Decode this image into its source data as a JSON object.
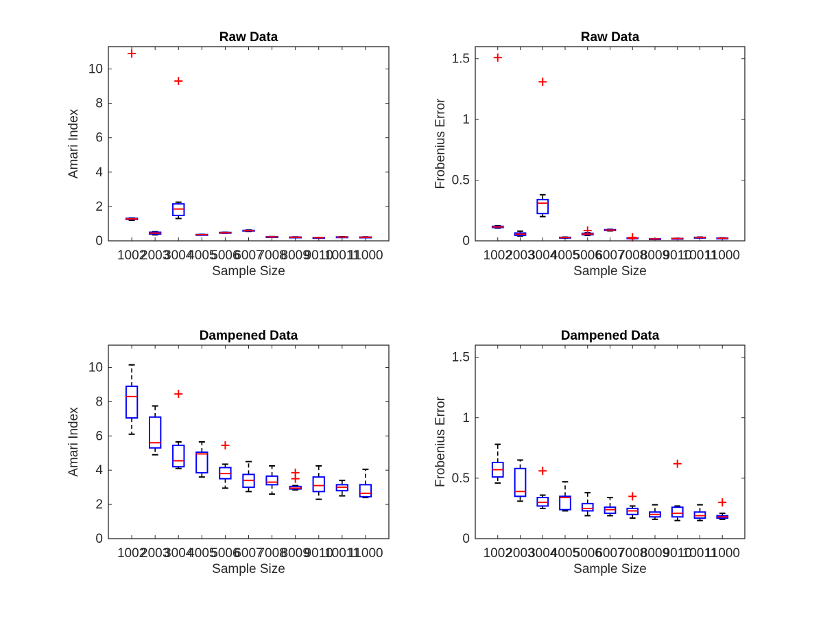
{
  "figure": {
    "background": "#ffffff",
    "box_color": "#0000ff",
    "median_color": "#ff0000",
    "whisker_color": "#000000",
    "outlier_color": "#ff0000",
    "outlier_marker": "+"
  },
  "chart_data": [
    {
      "type": "box",
      "title": "Raw Data",
      "xlabel": "Sample Size",
      "ylabel": "Amari Index",
      "ylim": [
        0,
        11.3
      ],
      "yticks": [
        0,
        2,
        4,
        6,
        8,
        10
      ],
      "yticklabels": [
        "0",
        "2",
        "4",
        "6",
        "8",
        "10"
      ],
      "categories": [
        "1002",
        "2003",
        "3004",
        "4005",
        "5006",
        "6007",
        "7008",
        "8009",
        "9010",
        "10011",
        "11000"
      ],
      "boxes": [
        {
          "wlo": 1.2,
          "q1": 1.25,
          "median": 1.28,
          "q3": 1.31,
          "whi": 1.33,
          "outliers": [
            10.9
          ]
        },
        {
          "wlo": 0.35,
          "q1": 0.4,
          "median": 0.45,
          "q3": 0.5,
          "whi": 0.53,
          "outliers": []
        },
        {
          "wlo": 1.3,
          "q1": 1.48,
          "median": 1.85,
          "q3": 2.15,
          "whi": 2.25,
          "outliers": [
            9.3
          ]
        },
        {
          "wlo": 0.34,
          "q1": 0.35,
          "median": 0.36,
          "q3": 0.37,
          "whi": 0.38,
          "outliers": []
        },
        {
          "wlo": 0.45,
          "q1": 0.46,
          "median": 0.47,
          "q3": 0.49,
          "whi": 0.5,
          "outliers": []
        },
        {
          "wlo": 0.55,
          "q1": 0.57,
          "median": 0.59,
          "q3": 0.61,
          "whi": 0.63,
          "outliers": []
        },
        {
          "wlo": 0.21,
          "q1": 0.22,
          "median": 0.23,
          "q3": 0.24,
          "whi": 0.25,
          "outliers": []
        },
        {
          "wlo": 0.19,
          "q1": 0.2,
          "median": 0.21,
          "q3": 0.22,
          "whi": 0.23,
          "outliers": []
        },
        {
          "wlo": 0.16,
          "q1": 0.17,
          "median": 0.18,
          "q3": 0.19,
          "whi": 0.2,
          "outliers": []
        },
        {
          "wlo": 0.2,
          "q1": 0.21,
          "median": 0.22,
          "q3": 0.23,
          "whi": 0.24,
          "outliers": []
        },
        {
          "wlo": 0.19,
          "q1": 0.2,
          "median": 0.21,
          "q3": 0.22,
          "whi": 0.23,
          "outliers": []
        }
      ]
    },
    {
      "type": "box",
      "title": "Raw Data",
      "xlabel": "Sample Size",
      "ylabel": "Frobenius Error",
      "ylim": [
        0,
        1.6
      ],
      "yticks": [
        0,
        0.5,
        1,
        1.5
      ],
      "yticklabels": [
        "0",
        "0.5",
        "1",
        "1.5"
      ],
      "categories": [
        "1002",
        "2003",
        "3004",
        "4005",
        "5006",
        "6007",
        "7008",
        "8009",
        "9010",
        "10011",
        "11000"
      ],
      "boxes": [
        {
          "wlo": 0.105,
          "q1": 0.11,
          "median": 0.115,
          "q3": 0.12,
          "whi": 0.125,
          "outliers": [
            1.51
          ]
        },
        {
          "wlo": 0.04,
          "q1": 0.045,
          "median": 0.055,
          "q3": 0.065,
          "whi": 0.08,
          "outliers": []
        },
        {
          "wlo": 0.2,
          "q1": 0.225,
          "median": 0.31,
          "q3": 0.34,
          "whi": 0.38,
          "outliers": [
            1.31
          ]
        },
        {
          "wlo": 0.022,
          "q1": 0.025,
          "median": 0.027,
          "q3": 0.029,
          "whi": 0.031,
          "outliers": []
        },
        {
          "wlo": 0.045,
          "q1": 0.05,
          "median": 0.056,
          "q3": 0.062,
          "whi": 0.067,
          "outliers": [
            0.085
          ]
        },
        {
          "wlo": 0.082,
          "q1": 0.085,
          "median": 0.088,
          "q3": 0.092,
          "whi": 0.095,
          "outliers": []
        },
        {
          "wlo": 0.018,
          "q1": 0.02,
          "median": 0.022,
          "q3": 0.024,
          "whi": 0.026,
          "outliers": [
            0.028
          ]
        },
        {
          "wlo": 0.014,
          "q1": 0.015,
          "median": 0.016,
          "q3": 0.017,
          "whi": 0.018,
          "outliers": []
        },
        {
          "wlo": 0.017,
          "q1": 0.018,
          "median": 0.019,
          "q3": 0.02,
          "whi": 0.021,
          "outliers": []
        },
        {
          "wlo": 0.024,
          "q1": 0.025,
          "median": 0.027,
          "q3": 0.029,
          "whi": 0.031,
          "outliers": []
        },
        {
          "wlo": 0.018,
          "q1": 0.019,
          "median": 0.021,
          "q3": 0.023,
          "whi": 0.025,
          "outliers": []
        }
      ]
    },
    {
      "type": "box",
      "title": "Dampened Data",
      "xlabel": "Sample Size",
      "ylabel": "Amari Index",
      "ylim": [
        0,
        11.3
      ],
      "yticks": [
        0,
        2,
        4,
        6,
        8,
        10
      ],
      "yticklabels": [
        "0",
        "2",
        "4",
        "6",
        "8",
        "10"
      ],
      "categories": [
        "1002",
        "2003",
        "3004",
        "4005",
        "5006",
        "6007",
        "7008",
        "8009",
        "9010",
        "10011",
        "11000"
      ],
      "boxes": [
        {
          "wlo": 6.1,
          "q1": 7.05,
          "median": 8.3,
          "q3": 8.9,
          "whi": 10.15,
          "outliers": []
        },
        {
          "wlo": 4.9,
          "q1": 5.3,
          "median": 5.6,
          "q3": 7.1,
          "whi": 7.75,
          "outliers": []
        },
        {
          "wlo": 4.1,
          "q1": 4.2,
          "median": 4.55,
          "q3": 5.45,
          "whi": 5.65,
          "outliers": [
            8.45
          ]
        },
        {
          "wlo": 3.6,
          "q1": 3.85,
          "median": 4.95,
          "q3": 5.05,
          "whi": 5.65,
          "outliers": []
        },
        {
          "wlo": 2.95,
          "q1": 3.5,
          "median": 3.8,
          "q3": 4.15,
          "whi": 4.35,
          "outliers": [
            5.45
          ]
        },
        {
          "wlo": 2.75,
          "q1": 3.0,
          "median": 3.4,
          "q3": 3.75,
          "whi": 4.5,
          "outliers": []
        },
        {
          "wlo": 2.6,
          "q1": 3.15,
          "median": 3.3,
          "q3": 3.65,
          "whi": 4.25,
          "outliers": []
        },
        {
          "wlo": 2.85,
          "q1": 2.9,
          "median": 2.95,
          "q3": 3.05,
          "whi": 3.1,
          "outliers": [
            3.5,
            3.85
          ]
        },
        {
          "wlo": 2.3,
          "q1": 2.75,
          "median": 3.1,
          "q3": 3.6,
          "whi": 4.25,
          "outliers": []
        },
        {
          "wlo": 2.5,
          "q1": 2.8,
          "median": 3.0,
          "q3": 3.15,
          "whi": 3.4,
          "outliers": []
        },
        {
          "wlo": 2.4,
          "q1": 2.45,
          "median": 2.65,
          "q3": 3.15,
          "whi": 4.05,
          "outliers": []
        }
      ]
    },
    {
      "type": "box",
      "title": "Dampened Data",
      "xlabel": "Sample Size",
      "ylabel": "Frobenius Error",
      "ylim": [
        0,
        1.6
      ],
      "yticks": [
        0,
        0.5,
        1,
        1.5
      ],
      "yticklabels": [
        "0",
        "0.5",
        "1",
        "1.5"
      ],
      "categories": [
        "1002",
        "2003",
        "3004",
        "4005",
        "5006",
        "6007",
        "7008",
        "8009",
        "9010",
        "10011",
        "11000"
      ],
      "boxes": [
        {
          "wlo": 0.46,
          "q1": 0.51,
          "median": 0.57,
          "q3": 0.63,
          "whi": 0.78,
          "outliers": []
        },
        {
          "wlo": 0.31,
          "q1": 0.35,
          "median": 0.39,
          "q3": 0.58,
          "whi": 0.65,
          "outliers": []
        },
        {
          "wlo": 0.25,
          "q1": 0.27,
          "median": 0.3,
          "q3": 0.34,
          "whi": 0.36,
          "outliers": [
            0.56
          ]
        },
        {
          "wlo": 0.23,
          "q1": 0.24,
          "median": 0.34,
          "q3": 0.35,
          "whi": 0.47,
          "outliers": []
        },
        {
          "wlo": 0.19,
          "q1": 0.23,
          "median": 0.25,
          "q3": 0.29,
          "whi": 0.38,
          "outliers": []
        },
        {
          "wlo": 0.19,
          "q1": 0.21,
          "median": 0.24,
          "q3": 0.26,
          "whi": 0.34,
          "outliers": []
        },
        {
          "wlo": 0.17,
          "q1": 0.2,
          "median": 0.23,
          "q3": 0.25,
          "whi": 0.27,
          "outliers": [
            0.35
          ]
        },
        {
          "wlo": 0.16,
          "q1": 0.18,
          "median": 0.2,
          "q3": 0.22,
          "whi": 0.28,
          "outliers": []
        },
        {
          "wlo": 0.15,
          "q1": 0.18,
          "median": 0.21,
          "q3": 0.26,
          "whi": 0.27,
          "outliers": [
            0.62
          ]
        },
        {
          "wlo": 0.15,
          "q1": 0.17,
          "median": 0.19,
          "q3": 0.22,
          "whi": 0.28,
          "outliers": []
        },
        {
          "wlo": 0.16,
          "q1": 0.17,
          "median": 0.18,
          "q3": 0.19,
          "whi": 0.21,
          "outliers": [
            0.3
          ]
        }
      ]
    }
  ]
}
